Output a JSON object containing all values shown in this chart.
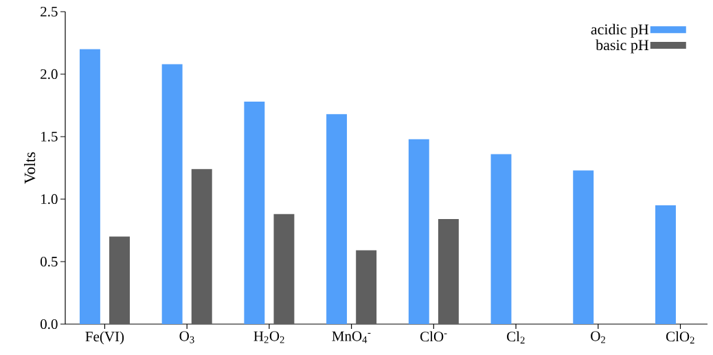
{
  "chart_data": {
    "type": "bar",
    "ylabel": "Volts",
    "categories": [
      "Fe(VI)",
      "O$_{3}$",
      "H$_{2}$O$_{2}$",
      "MnO$_{4}$$^{-}$",
      "ClO$^{-}$",
      "Cl$_{2}$",
      "O$_{2}$",
      "ClO$_{2}$"
    ],
    "series": [
      {
        "name": "acidic pH",
        "color": "#529ffa",
        "values": [
          2.2,
          2.08,
          1.78,
          1.68,
          1.48,
          1.36,
          1.23,
          0.95
        ]
      },
      {
        "name": "basic pH",
        "color": "#5f5f5f",
        "values": [
          0.7,
          1.24,
          0.88,
          0.59,
          0.84,
          null,
          null,
          null
        ]
      }
    ],
    "ylim": [
      0,
      2.5
    ],
    "yticks": [
      {
        "value": 0,
        "label": "0.0"
      },
      {
        "value": 0.5,
        "label": "0.5"
      },
      {
        "value": 1.0,
        "label": "1.0"
      },
      {
        "value": 1.5,
        "label": "1.5"
      },
      {
        "value": 2.0,
        "label": "2.0"
      },
      {
        "value": 2.5,
        "label": "2.5"
      }
    ],
    "legend": "top right"
  }
}
